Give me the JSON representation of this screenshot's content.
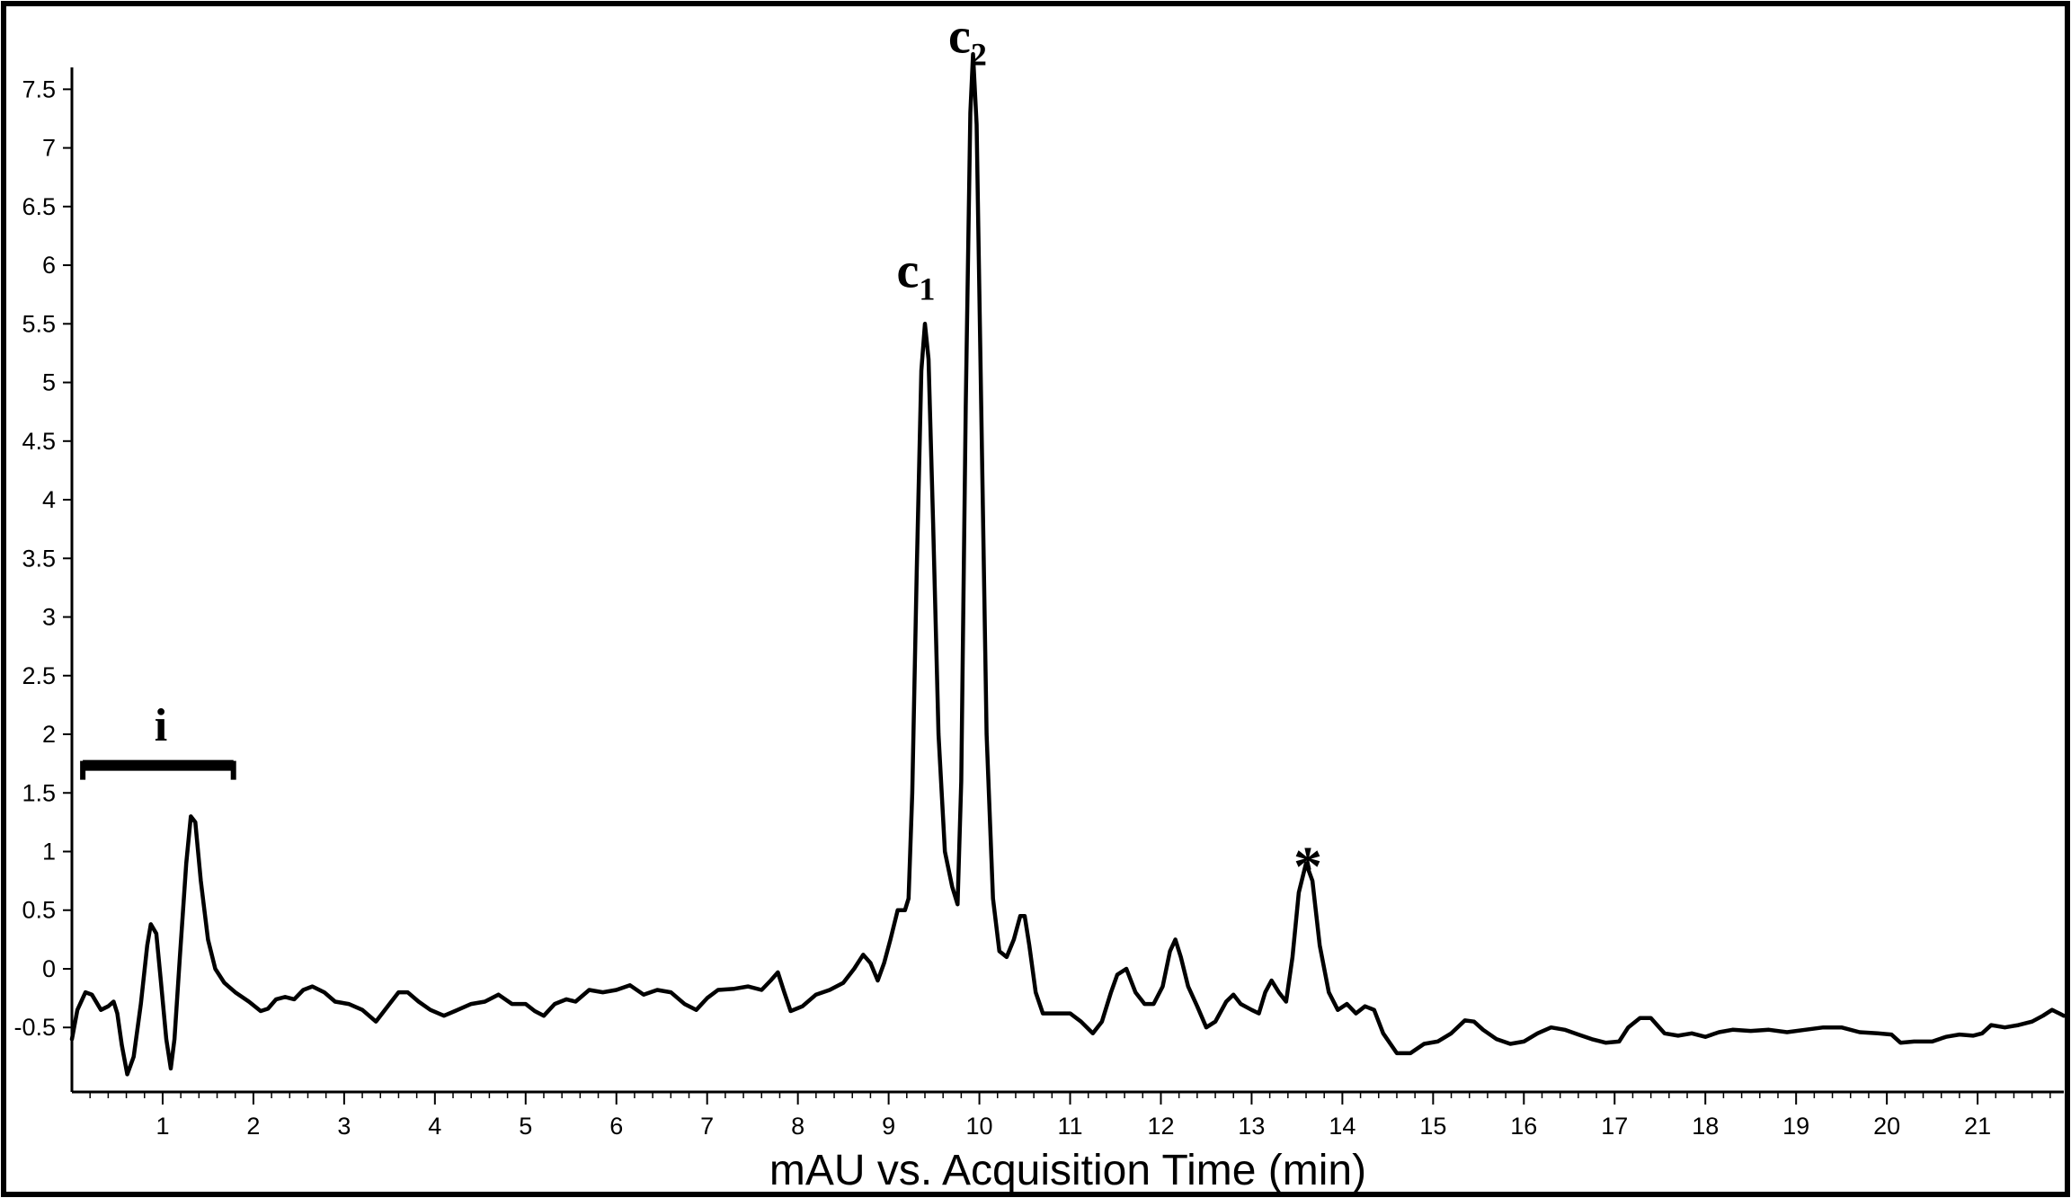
{
  "chart_data": {
    "type": "line",
    "title": "",
    "xlabel": "mAU vs. Acquisition Time (min)",
    "ylabel": "",
    "xlim": [
      0,
      21.95
    ],
    "ylim": [
      -1.05,
      8.2
    ],
    "x_ticks": [
      1,
      2,
      3,
      4,
      5,
      6,
      7,
      8,
      9,
      10,
      11,
      12,
      13,
      14,
      15,
      16,
      17,
      18,
      19,
      20,
      21
    ],
    "x_tick_labels": [
      "1",
      "2",
      "3",
      "4",
      "5",
      "6",
      "7",
      "8",
      "9",
      "10",
      "11",
      "12",
      "13",
      "14",
      "15",
      "16",
      "17",
      "18",
      "19",
      "20",
      "21"
    ],
    "y_ticks": [
      -0.5,
      0,
      0.5,
      1,
      1.5,
      2,
      2.5,
      3,
      3.5,
      4,
      4.5,
      5,
      5.5,
      6,
      6.5,
      7,
      7.5
    ],
    "y_tick_labels": [
      "-0.5",
      "0",
      "0.5",
      "1",
      "1.5",
      "2",
      "2.5",
      "3",
      "3.5",
      "4",
      "4.5",
      "5",
      "5.5",
      "6",
      "6.5",
      "7",
      "7.5"
    ],
    "grid": false,
    "legend": "none",
    "line_color": "#000000",
    "annotations": [
      {
        "text": "i",
        "x": 0.98,
        "y": 2.1,
        "type": "bracket",
        "x_start": 0.12,
        "x_end": 1.78,
        "bracket_y": 1.75
      },
      {
        "text": "c",
        "subscript": "1",
        "x": 9.3,
        "y": 5.95
      },
      {
        "text": "c",
        "subscript": "2",
        "x": 9.87,
        "y": 7.95
      },
      {
        "text": "*",
        "x": 13.62,
        "y": 1.0
      }
    ],
    "series": [
      {
        "values": [
          [
            0.0,
            -0.6
          ],
          [
            0.06,
            -0.35
          ],
          [
            0.15,
            -0.2
          ],
          [
            0.22,
            -0.22
          ],
          [
            0.32,
            -0.35
          ],
          [
            0.4,
            -0.32
          ],
          [
            0.46,
            -0.28
          ],
          [
            0.5,
            -0.38
          ],
          [
            0.55,
            -0.65
          ],
          [
            0.61,
            -0.9
          ],
          [
            0.68,
            -0.75
          ],
          [
            0.76,
            -0.3
          ],
          [
            0.83,
            0.2
          ],
          [
            0.87,
            0.38
          ],
          [
            0.93,
            0.3
          ],
          [
            0.98,
            -0.1
          ],
          [
            1.04,
            -0.6
          ],
          [
            1.09,
            -0.85
          ],
          [
            1.13,
            -0.6
          ],
          [
            1.19,
            0.1
          ],
          [
            1.26,
            0.9
          ],
          [
            1.31,
            1.3
          ],
          [
            1.36,
            1.25
          ],
          [
            1.42,
            0.75
          ],
          [
            1.5,
            0.25
          ],
          [
            1.58,
            0.0
          ],
          [
            1.68,
            -0.12
          ],
          [
            1.8,
            -0.2
          ],
          [
            1.95,
            -0.28
          ],
          [
            2.08,
            -0.36
          ],
          [
            2.16,
            -0.34
          ],
          [
            2.25,
            -0.26
          ],
          [
            2.35,
            -0.24
          ],
          [
            2.45,
            -0.26
          ],
          [
            2.55,
            -0.18
          ],
          [
            2.65,
            -0.15
          ],
          [
            2.78,
            -0.2
          ],
          [
            2.9,
            -0.28
          ],
          [
            3.05,
            -0.3
          ],
          [
            3.2,
            -0.35
          ],
          [
            3.35,
            -0.45
          ],
          [
            3.48,
            -0.32
          ],
          [
            3.6,
            -0.2
          ],
          [
            3.7,
            -0.2
          ],
          [
            3.82,
            -0.28
          ],
          [
            3.95,
            -0.35
          ],
          [
            4.1,
            -0.4
          ],
          [
            4.25,
            -0.35
          ],
          [
            4.4,
            -0.3
          ],
          [
            4.55,
            -0.28
          ],
          [
            4.7,
            -0.22
          ],
          [
            4.85,
            -0.3
          ],
          [
            5.0,
            -0.3
          ],
          [
            5.1,
            -0.36
          ],
          [
            5.2,
            -0.4
          ],
          [
            5.32,
            -0.3
          ],
          [
            5.45,
            -0.26
          ],
          [
            5.55,
            -0.28
          ],
          [
            5.7,
            -0.18
          ],
          [
            5.85,
            -0.2
          ],
          [
            6.0,
            -0.18
          ],
          [
            6.15,
            -0.14
          ],
          [
            6.3,
            -0.22
          ],
          [
            6.45,
            -0.18
          ],
          [
            6.6,
            -0.2
          ],
          [
            6.75,
            -0.3
          ],
          [
            6.88,
            -0.35
          ],
          [
            7.0,
            -0.25
          ],
          [
            7.12,
            -0.18
          ],
          [
            7.3,
            -0.17
          ],
          [
            7.45,
            -0.15
          ],
          [
            7.6,
            -0.18
          ],
          [
            7.7,
            -0.1
          ],
          [
            7.78,
            -0.03
          ],
          [
            7.85,
            -0.2
          ],
          [
            7.92,
            -0.36
          ],
          [
            8.05,
            -0.32
          ],
          [
            8.2,
            -0.22
          ],
          [
            8.35,
            -0.18
          ],
          [
            8.5,
            -0.12
          ],
          [
            8.62,
            0.0
          ],
          [
            8.72,
            0.12
          ],
          [
            8.8,
            0.05
          ],
          [
            8.88,
            -0.1
          ],
          [
            8.95,
            0.05
          ],
          [
            9.02,
            0.25
          ],
          [
            9.1,
            0.5
          ],
          [
            9.18,
            0.5
          ],
          [
            9.22,
            0.6
          ],
          [
            9.26,
            1.5
          ],
          [
            9.31,
            3.4
          ],
          [
            9.36,
            5.1
          ],
          [
            9.4,
            5.5
          ],
          [
            9.44,
            5.2
          ],
          [
            9.49,
            3.8
          ],
          [
            9.55,
            2.0
          ],
          [
            9.62,
            1.0
          ],
          [
            9.7,
            0.7
          ],
          [
            9.76,
            0.55
          ],
          [
            9.8,
            1.6
          ],
          [
            9.85,
            4.8
          ],
          [
            9.9,
            7.3
          ],
          [
            9.93,
            7.8
          ],
          [
            9.97,
            7.2
          ],
          [
            10.02,
            4.8
          ],
          [
            10.08,
            2.0
          ],
          [
            10.15,
            0.6
          ],
          [
            10.22,
            0.15
          ],
          [
            10.3,
            0.1
          ],
          [
            10.38,
            0.25
          ],
          [
            10.45,
            0.45
          ],
          [
            10.5,
            0.45
          ],
          [
            10.55,
            0.2
          ],
          [
            10.62,
            -0.2
          ],
          [
            10.7,
            -0.38
          ],
          [
            10.85,
            -0.38
          ],
          [
            11.0,
            -0.38
          ],
          [
            11.12,
            -0.45
          ],
          [
            11.25,
            -0.55
          ],
          [
            11.35,
            -0.45
          ],
          [
            11.45,
            -0.2
          ],
          [
            11.52,
            -0.05
          ],
          [
            11.62,
            0.0
          ],
          [
            11.72,
            -0.2
          ],
          [
            11.82,
            -0.3
          ],
          [
            11.92,
            -0.3
          ],
          [
            12.02,
            -0.15
          ],
          [
            12.1,
            0.15
          ],
          [
            12.16,
            0.25
          ],
          [
            12.22,
            0.1
          ],
          [
            12.3,
            -0.15
          ],
          [
            12.4,
            -0.32
          ],
          [
            12.5,
            -0.5
          ],
          [
            12.6,
            -0.45
          ],
          [
            12.72,
            -0.28
          ],
          [
            12.8,
            -0.22
          ],
          [
            12.88,
            -0.3
          ],
          [
            13.0,
            -0.35
          ],
          [
            13.08,
            -0.38
          ],
          [
            13.15,
            -0.2
          ],
          [
            13.22,
            -0.1
          ],
          [
            13.3,
            -0.2
          ],
          [
            13.38,
            -0.28
          ],
          [
            13.45,
            0.1
          ],
          [
            13.52,
            0.65
          ],
          [
            13.6,
            0.9
          ],
          [
            13.67,
            0.75
          ],
          [
            13.75,
            0.2
          ],
          [
            13.85,
            -0.2
          ],
          [
            13.95,
            -0.35
          ],
          [
            14.05,
            -0.3
          ],
          [
            14.15,
            -0.38
          ],
          [
            14.25,
            -0.32
          ],
          [
            14.35,
            -0.35
          ],
          [
            14.45,
            -0.55
          ],
          [
            14.6,
            -0.72
          ],
          [
            14.75,
            -0.72
          ],
          [
            14.9,
            -0.64
          ],
          [
            15.05,
            -0.62
          ],
          [
            15.2,
            -0.55
          ],
          [
            15.35,
            -0.44
          ],
          [
            15.45,
            -0.45
          ],
          [
            15.55,
            -0.52
          ],
          [
            15.7,
            -0.6
          ],
          [
            15.85,
            -0.64
          ],
          [
            16.0,
            -0.62
          ],
          [
            16.15,
            -0.55
          ],
          [
            16.3,
            -0.5
          ],
          [
            16.45,
            -0.52
          ],
          [
            16.6,
            -0.56
          ],
          [
            16.75,
            -0.6
          ],
          [
            16.9,
            -0.63
          ],
          [
            17.05,
            -0.62
          ],
          [
            17.15,
            -0.5
          ],
          [
            17.28,
            -0.42
          ],
          [
            17.4,
            -0.42
          ],
          [
            17.55,
            -0.55
          ],
          [
            17.7,
            -0.57
          ],
          [
            17.85,
            -0.55
          ],
          [
            18.0,
            -0.58
          ],
          [
            18.15,
            -0.54
          ],
          [
            18.3,
            -0.52
          ],
          [
            18.5,
            -0.53
          ],
          [
            18.7,
            -0.52
          ],
          [
            18.9,
            -0.54
          ],
          [
            19.1,
            -0.52
          ],
          [
            19.3,
            -0.5
          ],
          [
            19.5,
            -0.5
          ],
          [
            19.7,
            -0.54
          ],
          [
            19.9,
            -0.55
          ],
          [
            20.05,
            -0.56
          ],
          [
            20.15,
            -0.63
          ],
          [
            20.3,
            -0.62
          ],
          [
            20.5,
            -0.62
          ],
          [
            20.65,
            -0.58
          ],
          [
            20.8,
            -0.56
          ],
          [
            20.95,
            -0.57
          ],
          [
            21.05,
            -0.55
          ],
          [
            21.15,
            -0.48
          ],
          [
            21.3,
            -0.5
          ],
          [
            21.45,
            -0.48
          ],
          [
            21.6,
            -0.45
          ],
          [
            21.72,
            -0.4
          ],
          [
            21.82,
            -0.35
          ],
          [
            21.9,
            -0.38
          ],
          [
            21.95,
            -0.4
          ]
        ]
      }
    ]
  }
}
